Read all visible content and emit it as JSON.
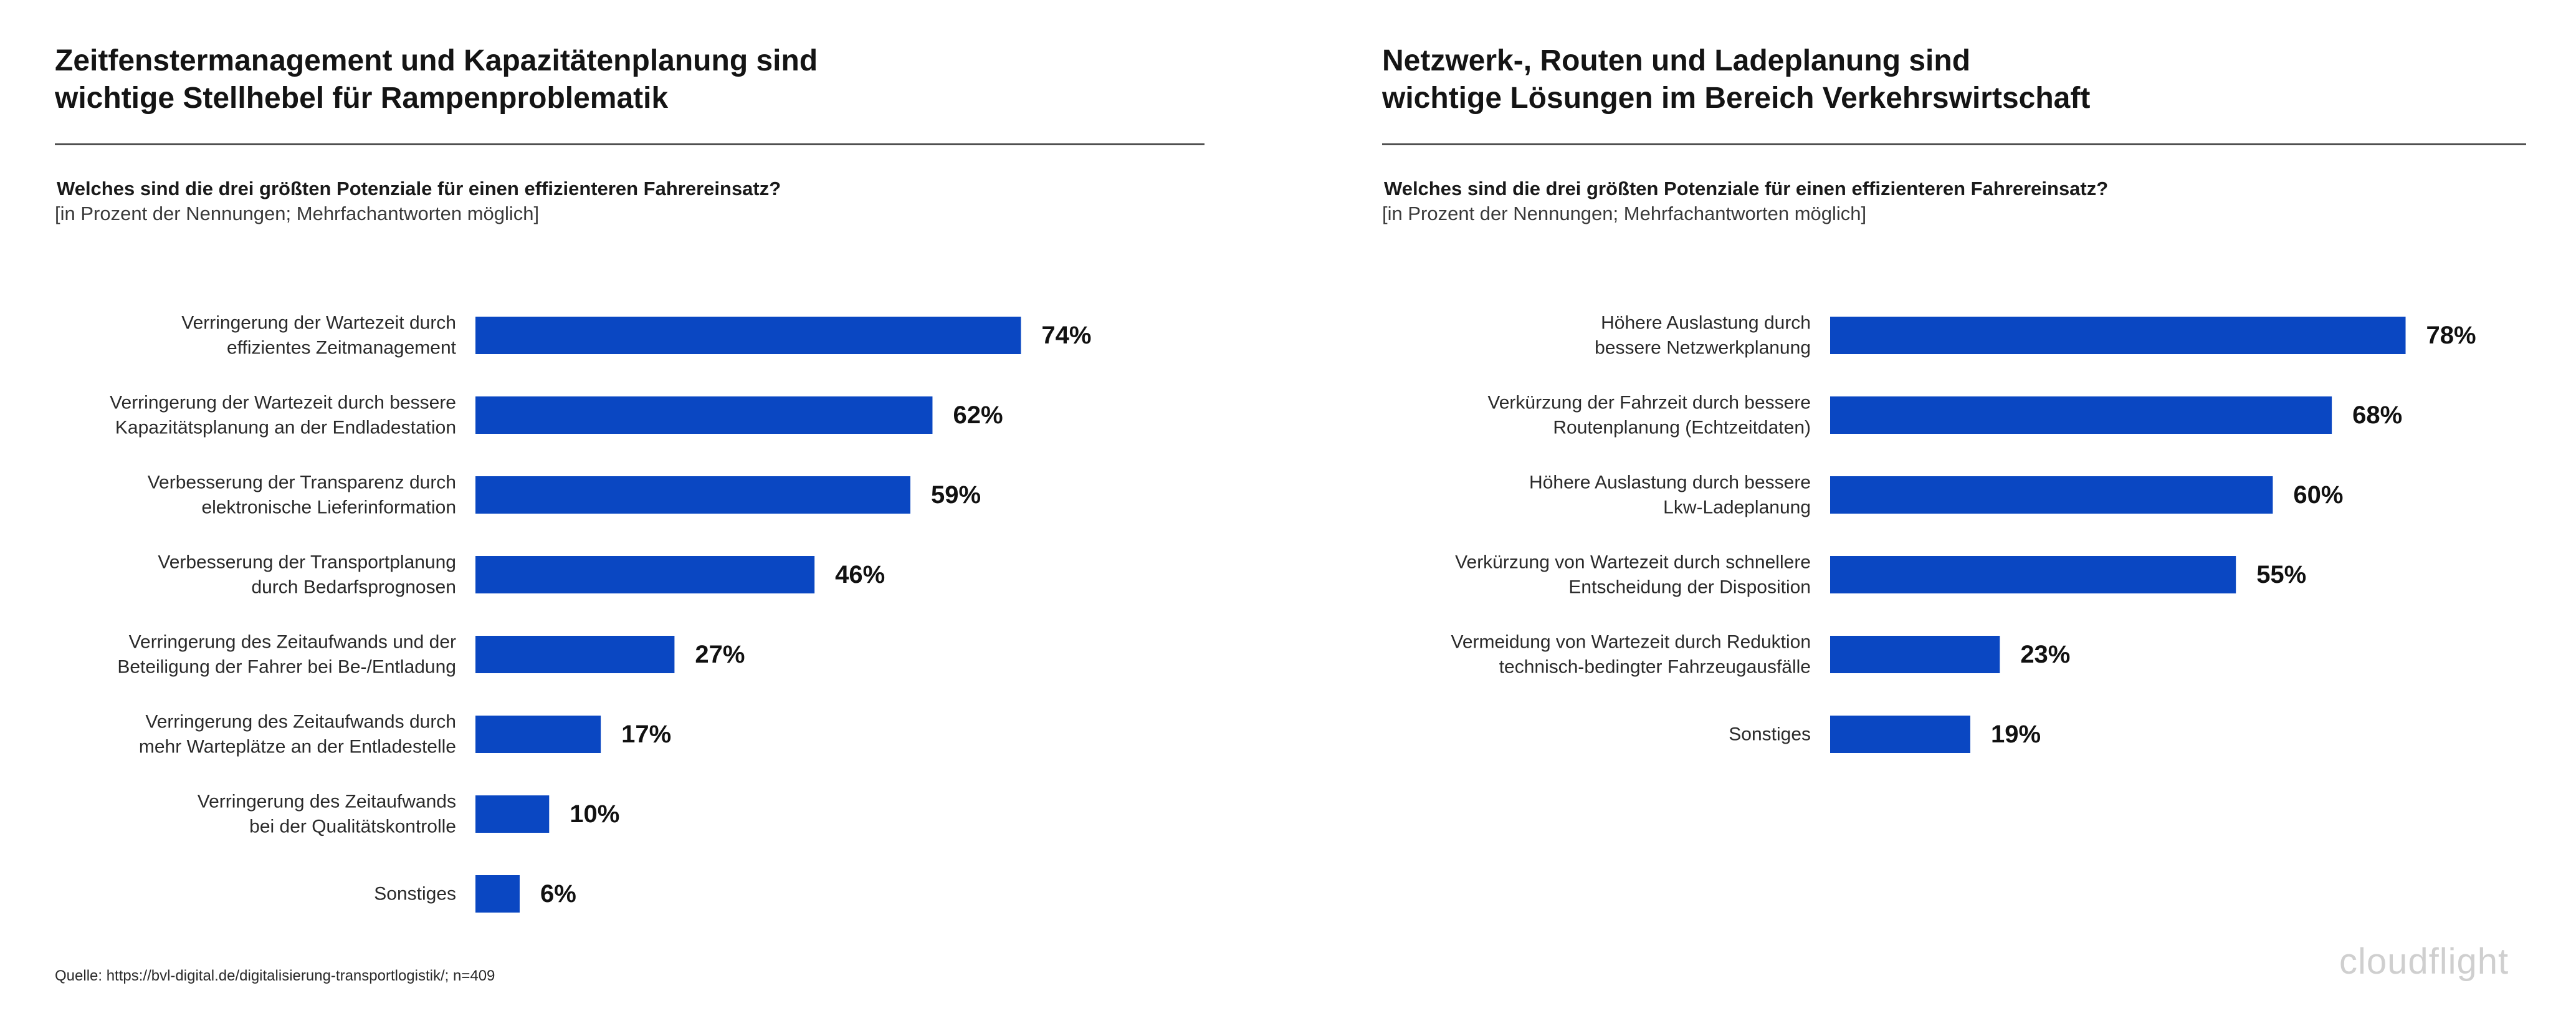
{
  "charts": [
    {
      "title_line1": "Zeitfenstermanagement und Kapazitätenplanung sind",
      "title_line2": "wichtige Stellhebel für Rampenproblematik",
      "question": "Welches sind die drei größten Potenziale für einen effizienteren Fahrereinsatz?",
      "note": "[in Prozent der Nennungen; Mehrfachantworten möglich]"
    },
    {
      "title_line1": "Netzwerk-, Routen und Ladeplanung sind",
      "title_line2": "wichtige Lösungen im Bereich Verkehrswirtschaft",
      "question": "Welches sind die drei größten Potenziale für einen effizienteren Fahrereinsatz?",
      "note": "[in Prozent der Nennungen; Mehrfachantworten möglich]"
    }
  ],
  "chart_data": [
    {
      "type": "bar",
      "orientation": "horizontal",
      "title": "Zeitfenstermanagement und Kapazitätenplanung sind wichtige Stellhebel für Rampenproblematik",
      "subtitle": "Welches sind die drei größten Potenziale für einen effizienteren Fahrereinsatz?",
      "categories": [
        [
          "Verringerung der Wartezeit durch",
          "effizientes Zeitmanagement"
        ],
        [
          "Verringerung der Wartezeit durch bessere",
          "Kapazitätsplanung an der Endladestation"
        ],
        [
          "Verbesserung der Transparenz durch",
          "elektronische Lieferinformation"
        ],
        [
          "Verbesserung der Transportplanung",
          "durch Bedarfsprognosen"
        ],
        [
          "Verringerung des Zeitaufwands und der",
          "Beteiligung der Fahrer bei Be-/Entladung"
        ],
        [
          "Verringerung des Zeitaufwands durch",
          "mehr Warteplätze an der Entladestelle"
        ],
        [
          "Verringerung des Zeitaufwands",
          "bei der Qualitätskontrolle"
        ],
        [
          "Sonstiges"
        ]
      ],
      "values": [
        74,
        62,
        59,
        46,
        27,
        17,
        10,
        6
      ],
      "value_labels": [
        "74%",
        "62%",
        "59%",
        "46%",
        "27%",
        "17%",
        "10%",
        "6%"
      ],
      "unit": "%",
      "bar_color": "#0a47c2",
      "grid": false,
      "legend": "none"
    },
    {
      "type": "bar",
      "orientation": "horizontal",
      "title": "Netzwerk-, Routen und Ladeplanung sind wichtige Lösungen im Bereich Verkehrswirtschaft",
      "subtitle": "Welches sind die drei größten Potenziale für einen effizienteren Fahrereinsatz?",
      "categories": [
        [
          "Höhere Auslastung durch",
          "bessere Netzwerkplanung"
        ],
        [
          "Verkürzung der Fahrzeit durch bessere",
          "Routenplanung (Echtzeitdaten)"
        ],
        [
          "Höhere Auslastung durch bessere",
          "Lkw-Ladeplanung"
        ],
        [
          "Verkürzung von Wartezeit durch schnellere",
          "Entscheidung der Disposition"
        ],
        [
          "Vermeidung von Wartezeit durch Reduktion",
          "technisch-bedingter Fahrzeugausfälle"
        ],
        [
          "Sonstiges"
        ]
      ],
      "values": [
        78,
        68,
        60,
        55,
        23,
        19
      ],
      "value_labels": [
        "78%",
        "68%",
        "60%",
        "55%",
        "23%",
        "19%"
      ],
      "unit": "%",
      "bar_color": "#0a47c2",
      "grid": false,
      "legend": "none"
    }
  ],
  "footer": {
    "source": "Quelle: https://bvl-digital.de/digitalisierung-transportlogistik/; n=409",
    "logo_text": "cloudflight"
  },
  "colors": {
    "bar": "#0a47c2",
    "rule": "#505050",
    "logo": "#cfcfcf"
  }
}
